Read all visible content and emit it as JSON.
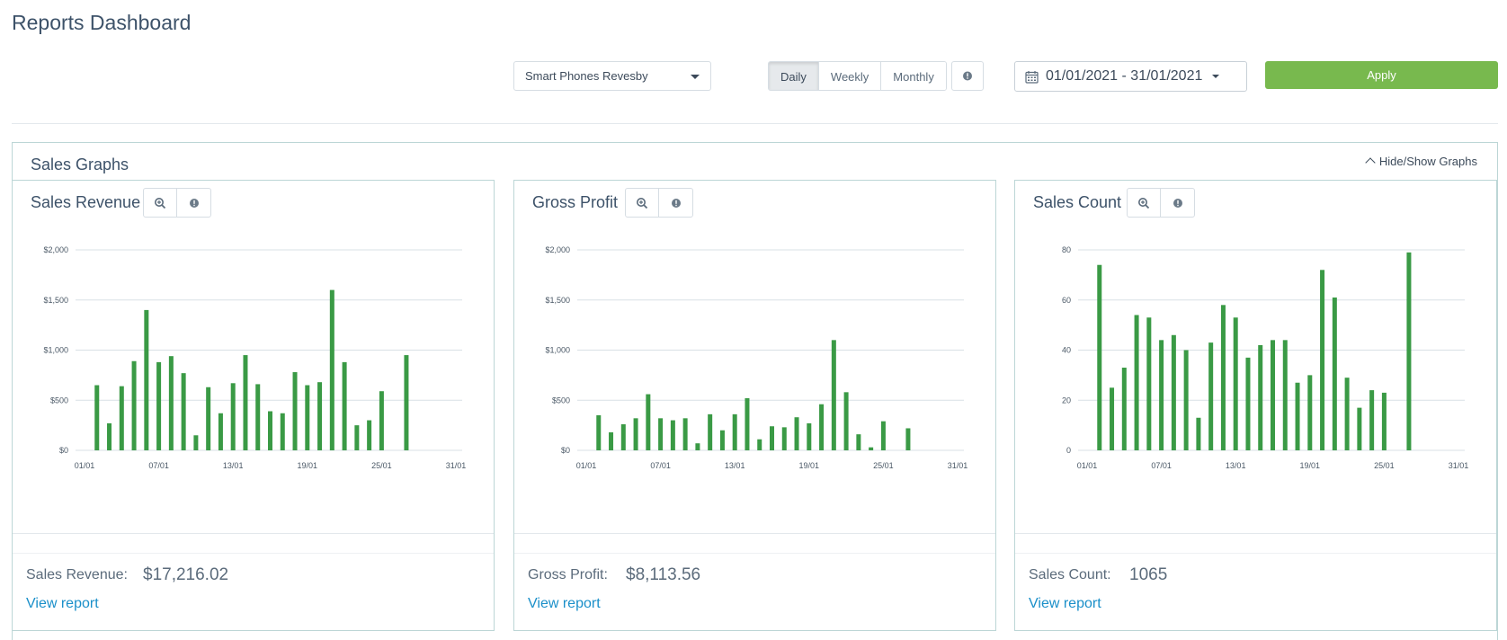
{
  "header": {
    "title": "Reports Dashboard"
  },
  "filters": {
    "store": "Smart Phones Revesby",
    "periods": [
      {
        "label": "Daily",
        "active": true
      },
      {
        "label": "Weekly",
        "active": false
      },
      {
        "label": "Monthly",
        "active": false
      }
    ],
    "date_range": "01/01/2021 - 31/01/2021",
    "apply_label": "Apply"
  },
  "graphs_panel": {
    "title": "Sales Graphs",
    "toggle_label": "Hide/Show Graphs"
  },
  "colors": {
    "bar": "#3a9a45",
    "grid": "#d9e0e5",
    "apply": "#78b94e",
    "link": "#1a8fc9"
  },
  "icons": {
    "zoom": "zoom-in-icon",
    "info": "info-icon",
    "calendar": "calendar-icon"
  },
  "cards": [
    {
      "title": "Sales Revenue",
      "total_label": "Sales Revenue:",
      "total_value": "$17,216.02",
      "link_label": "View report"
    },
    {
      "title": "Gross Profit",
      "total_label": "Gross Profit:",
      "total_value": "$8,113.56",
      "link_label": "View report"
    },
    {
      "title": "Sales Count",
      "total_label": "Sales Count:",
      "total_value": "1065",
      "link_label": "View report"
    }
  ],
  "chart_data": [
    {
      "type": "bar",
      "title": "Sales Revenue",
      "xlabel": "",
      "ylabel": "",
      "x": [
        "01/01",
        "02/01",
        "03/01",
        "04/01",
        "05/01",
        "06/01",
        "07/01",
        "08/01",
        "09/01",
        "10/01",
        "11/01",
        "12/01",
        "13/01",
        "14/01",
        "15/01",
        "16/01",
        "17/01",
        "18/01",
        "19/01",
        "20/01",
        "21/01",
        "22/01",
        "23/01",
        "24/01",
        "25/01",
        "26/01",
        "27/01",
        "28/01",
        "29/01",
        "30/01",
        "31/01"
      ],
      "xticks": [
        "01/01",
        "07/01",
        "13/01",
        "19/01",
        "25/01",
        "31/01"
      ],
      "yticks": [
        0,
        500,
        1000,
        1500,
        2000
      ],
      "ytick_labels": [
        "$0",
        "$500",
        "$1,000",
        "$1,500",
        "$2,000"
      ],
      "ylim": [
        0,
        2000
      ],
      "grid": true,
      "values": [
        650,
        270,
        640,
        890,
        1400,
        880,
        940,
        770,
        150,
        630,
        370,
        670,
        950,
        660,
        390,
        370,
        780,
        650,
        680,
        1600,
        880,
        250,
        300,
        590,
        0,
        950,
        0,
        0,
        0,
        0,
        0
      ]
    },
    {
      "type": "bar",
      "title": "Gross Profit",
      "xlabel": "",
      "ylabel": "",
      "x": [
        "01/01",
        "02/01",
        "03/01",
        "04/01",
        "05/01",
        "06/01",
        "07/01",
        "08/01",
        "09/01",
        "10/01",
        "11/01",
        "12/01",
        "13/01",
        "14/01",
        "15/01",
        "16/01",
        "17/01",
        "18/01",
        "19/01",
        "20/01",
        "21/01",
        "22/01",
        "23/01",
        "24/01",
        "25/01",
        "26/01",
        "27/01",
        "28/01",
        "29/01",
        "30/01",
        "31/01"
      ],
      "xticks": [
        "01/01",
        "07/01",
        "13/01",
        "19/01",
        "25/01",
        "31/01"
      ],
      "yticks": [
        0,
        500,
        1000,
        1500,
        2000
      ],
      "ytick_labels": [
        "$0",
        "$500",
        "$1,000",
        "$1,500",
        "$2,000"
      ],
      "ylim": [
        0,
        2000
      ],
      "grid": true,
      "values": [
        350,
        180,
        260,
        320,
        560,
        320,
        300,
        320,
        70,
        360,
        200,
        360,
        520,
        110,
        240,
        230,
        330,
        270,
        460,
        1100,
        580,
        160,
        30,
        290,
        0,
        220,
        0,
        0,
        0,
        0,
        0
      ]
    },
    {
      "type": "bar",
      "title": "Sales Count",
      "xlabel": "",
      "ylabel": "",
      "x": [
        "01/01",
        "02/01",
        "03/01",
        "04/01",
        "05/01",
        "06/01",
        "07/01",
        "08/01",
        "09/01",
        "10/01",
        "11/01",
        "12/01",
        "13/01",
        "14/01",
        "15/01",
        "16/01",
        "17/01",
        "18/01",
        "19/01",
        "20/01",
        "21/01",
        "22/01",
        "23/01",
        "24/01",
        "25/01",
        "26/01",
        "27/01",
        "28/01",
        "29/01",
        "30/01",
        "31/01"
      ],
      "xticks": [
        "01/01",
        "07/01",
        "13/01",
        "19/01",
        "25/01",
        "31/01"
      ],
      "yticks": [
        0,
        20,
        40,
        60,
        80
      ],
      "ytick_labels": [
        "0",
        "20",
        "40",
        "60",
        "80"
      ],
      "ylim": [
        0,
        80
      ],
      "grid": true,
      "values": [
        74,
        25,
        33,
        54,
        53,
        44,
        46,
        40,
        13,
        43,
        58,
        53,
        37,
        42,
        44,
        44,
        27,
        30,
        72,
        61,
        29,
        17,
        24,
        23,
        0,
        79,
        0,
        0,
        0,
        0,
        0
      ]
    }
  ]
}
